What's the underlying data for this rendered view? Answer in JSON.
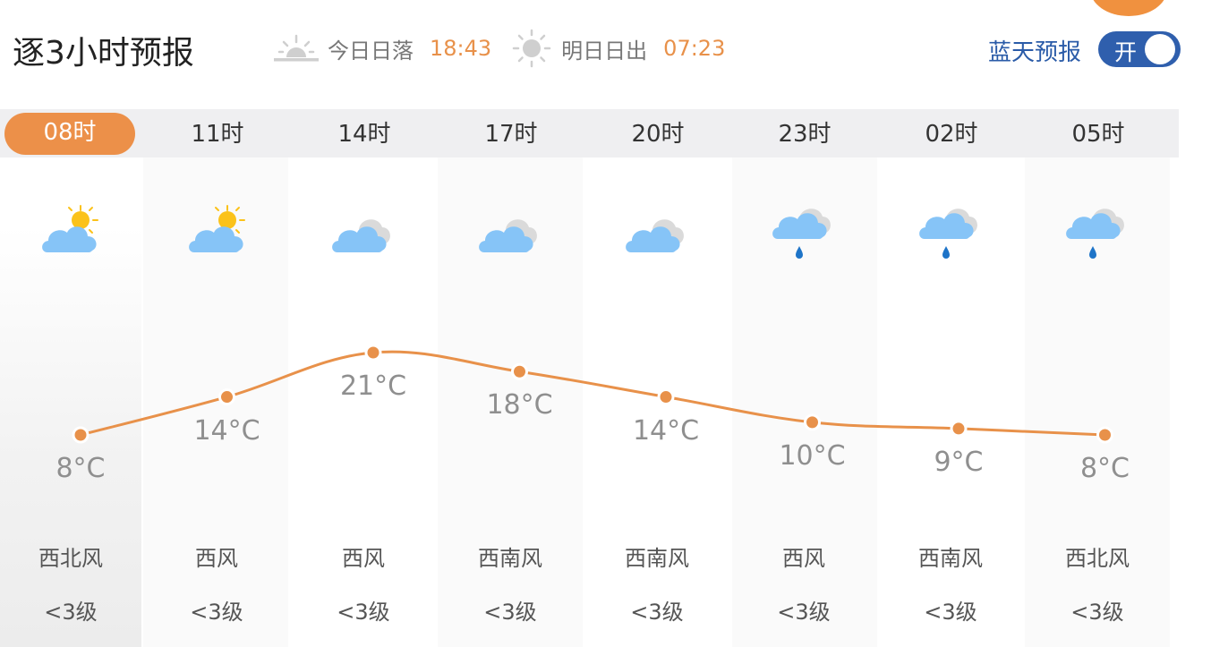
{
  "header": {
    "title": "逐3小时预报",
    "sunset_label": "今日日落",
    "sunset_time": "18:43",
    "sunrise_label": "明日日出",
    "sunrise_time": "07:23",
    "blue_sky_label": "蓝天预报",
    "toggle_label": "开"
  },
  "hours": [
    {
      "time": "08时",
      "weather": "partly-cloudy-icon",
      "temp": "8°C",
      "wind": "西北风",
      "level": "<3级"
    },
    {
      "time": "11时",
      "weather": "partly-cloudy-icon",
      "temp": "14°C",
      "wind": "西风",
      "level": "<3级"
    },
    {
      "time": "14时",
      "weather": "cloudy-icon",
      "temp": "21°C",
      "wind": "西风",
      "level": "<3级"
    },
    {
      "time": "17时",
      "weather": "cloudy-icon",
      "temp": "18°C",
      "wind": "西南风",
      "level": "<3级"
    },
    {
      "time": "20时",
      "weather": "cloudy-icon",
      "temp": "14°C",
      "wind": "西南风",
      "level": "<3级"
    },
    {
      "time": "23时",
      "weather": "light-rain-icon",
      "temp": "10°C",
      "wind": "西风",
      "level": "<3级"
    },
    {
      "time": "02时",
      "weather": "light-rain-icon",
      "temp": "9°C",
      "wind": "西南风",
      "level": "<3级"
    },
    {
      "time": "05时",
      "weather": "light-rain-icon",
      "temp": "8°C",
      "wind": "西北风",
      "level": "<3级"
    }
  ],
  "chart_data": {
    "type": "line",
    "categories": [
      "08时",
      "11时",
      "14时",
      "17时",
      "20时",
      "23时",
      "02时",
      "05时"
    ],
    "values": [
      8,
      14,
      21,
      18,
      14,
      10,
      9,
      8
    ],
    "unit": "°C"
  },
  "colors": {
    "accent": "#ec9049",
    "line": "#e8914a",
    "toggle": "#2f5fad",
    "blue_label": "#2a5ba8",
    "cloud": "#86c4f7",
    "sun": "#fbc21a",
    "rain": "#1e74c8"
  }
}
